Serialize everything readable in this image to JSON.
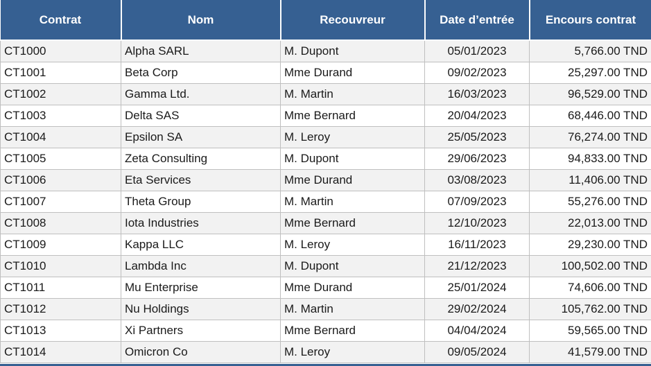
{
  "colors": {
    "header_bg": "#366092",
    "header_text": "#FFFFFF",
    "row_alt_bg": "#F2F2F2",
    "row_bg": "#FFFFFF",
    "border": "#BFBFBF",
    "text": "#1A1A1A",
    "accent_bar": "#366092"
  },
  "table": {
    "columns": [
      {
        "id": "contrat",
        "label": "Contrat"
      },
      {
        "id": "nom",
        "label": "Nom"
      },
      {
        "id": "recouvreur",
        "label": "Recouvreur"
      },
      {
        "id": "date-entree",
        "label": "Date d’entrée"
      },
      {
        "id": "encours-contrat",
        "label": "Encours contrat"
      }
    ],
    "rows": [
      [
        "CT1000",
        "Alpha SARL",
        "M. Dupont",
        "05/01/2023",
        "5,766.00 TND"
      ],
      [
        "CT1001",
        "Beta Corp",
        "Mme Durand",
        "09/02/2023",
        "25,297.00 TND"
      ],
      [
        "CT1002",
        "Gamma Ltd.",
        "M. Martin",
        "16/03/2023",
        "96,529.00 TND"
      ],
      [
        "CT1003",
        "Delta SAS",
        "Mme Bernard",
        "20/04/2023",
        "68,446.00 TND"
      ],
      [
        "CT1004",
        "Epsilon SA",
        "M. Leroy",
        "25/05/2023",
        "76,274.00 TND"
      ],
      [
        "CT1005",
        "Zeta Consulting",
        "M. Dupont",
        "29/06/2023",
        "94,833.00 TND"
      ],
      [
        "CT1006",
        "Eta Services",
        "Mme Durand",
        "03/08/2023",
        "11,406.00 TND"
      ],
      [
        "CT1007",
        "Theta Group",
        "M. Martin",
        "07/09/2023",
        "55,276.00 TND"
      ],
      [
        "CT1008",
        "Iota Industries",
        "Mme Bernard",
        "12/10/2023",
        "22,013.00 TND"
      ],
      [
        "CT1009",
        "Kappa LLC",
        "M. Leroy",
        "16/11/2023",
        "29,230.00 TND"
      ],
      [
        "CT1010",
        "Lambda Inc",
        "M. Dupont",
        "21/12/2023",
        "100,502.00 TND"
      ],
      [
        "CT1011",
        "Mu Enterprise",
        "Mme Durand",
        "25/01/2024",
        "74,606.00 TND"
      ],
      [
        "CT1012",
        "Nu Holdings",
        "M. Martin",
        "29/02/2024",
        "105,762.00 TND"
      ],
      [
        "CT1013",
        "Xi Partners",
        "Mme Bernard",
        "04/04/2024",
        "59,565.00 TND"
      ],
      [
        "CT1014",
        "Omicron Co",
        "M. Leroy",
        "09/05/2024",
        "41,579.00 TND"
      ]
    ]
  }
}
